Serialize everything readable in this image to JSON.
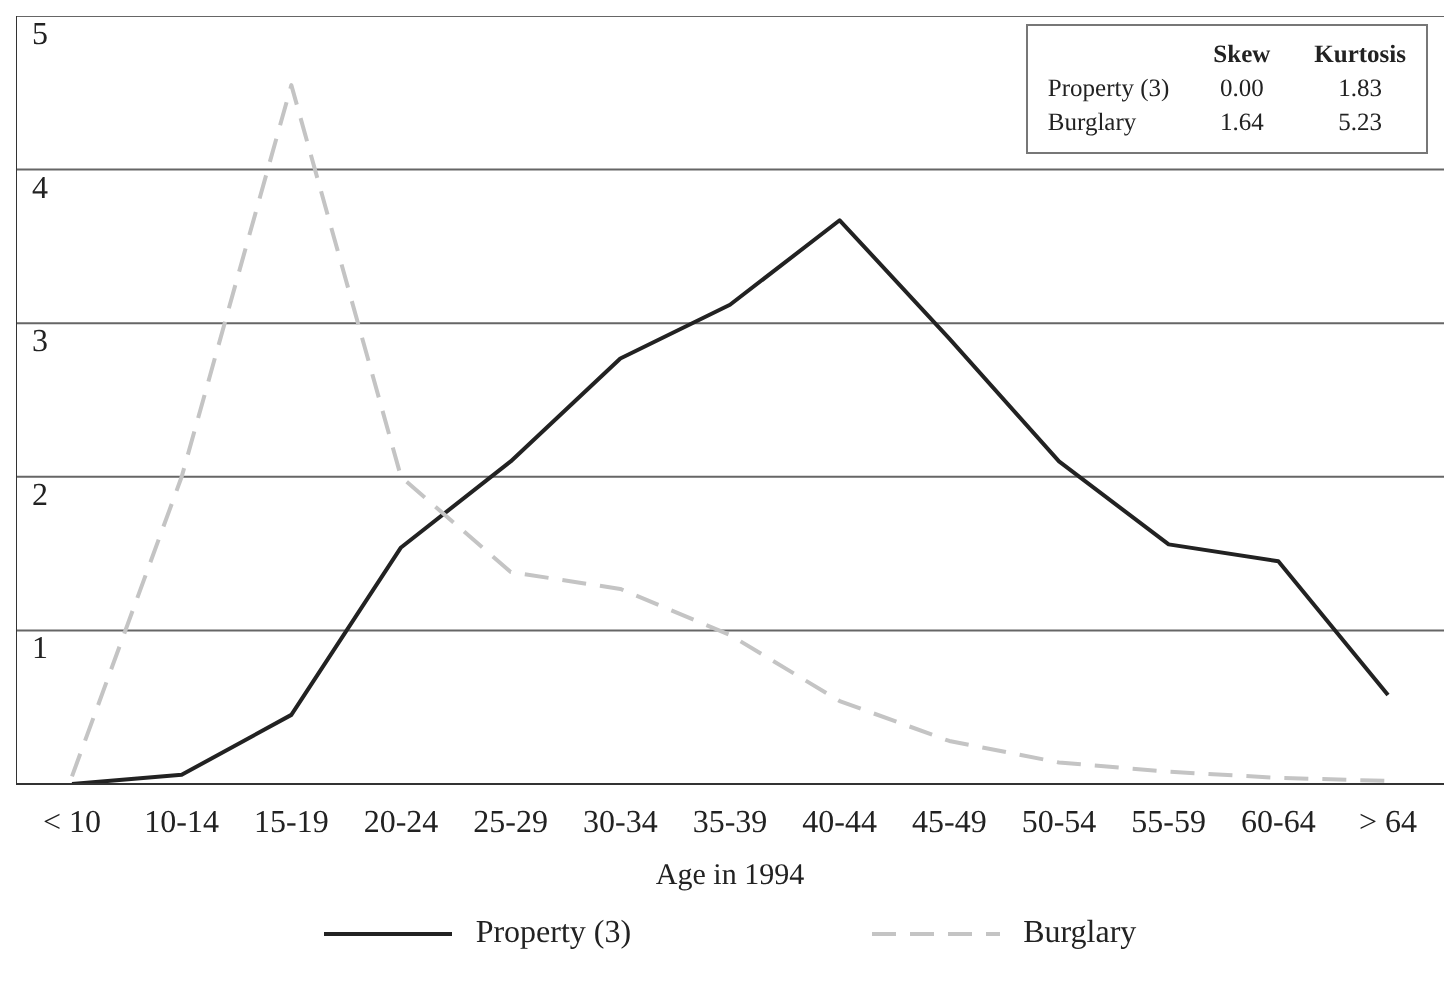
{
  "chart_data": {
    "type": "line",
    "xlabel": "Age in 1994",
    "categories": [
      "< 10",
      "10-14",
      "15-19",
      "20-24",
      "25-29",
      "30-34",
      "35-39",
      "40-44",
      "45-49",
      "50-54",
      "55-59",
      "60-64",
      "> 64"
    ],
    "series": [
      {
        "name": "Property (3)",
        "color": "#222222",
        "line_style": "solid",
        "values": [
          0.0,
          0.06,
          0.45,
          1.54,
          2.1,
          2.77,
          3.12,
          3.67,
          2.9,
          2.1,
          1.56,
          1.45,
          0.58
        ]
      },
      {
        "name": "Burglary",
        "color": "#c4c4c4",
        "line_style": "dashed",
        "values": [
          0.05,
          2.0,
          4.55,
          2.0,
          1.38,
          1.27,
          0.97,
          0.54,
          0.28,
          0.14,
          0.08,
          0.04,
          0.02
        ]
      }
    ],
    "ylim": [
      0,
      5
    ],
    "yticks": [
      {
        "value": 0,
        "label": null
      },
      1,
      2,
      3,
      4,
      5
    ],
    "grid": "y",
    "legend": "bottom",
    "marker": "none",
    "annotations": [
      "Skew",
      "Kurtosis",
      "Property (3)",
      "0.00",
      "1.83",
      "Burglary",
      "1.64",
      "5.23"
    ]
  }
}
